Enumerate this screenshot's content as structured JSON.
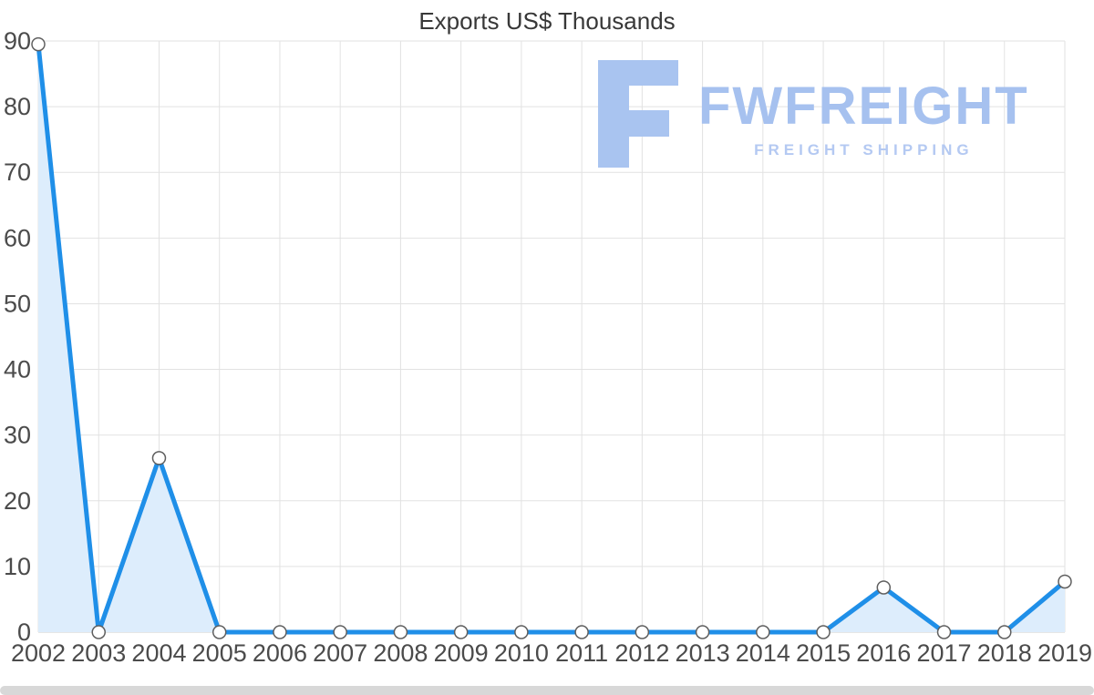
{
  "chart_data": {
    "type": "area",
    "title": "Exports US$ Thousands",
    "categories": [
      "2002",
      "2003",
      "2004",
      "2005",
      "2006",
      "2007",
      "2008",
      "2009",
      "2010",
      "2011",
      "2012",
      "2013",
      "2014",
      "2015",
      "2016",
      "2017",
      "2018",
      "2019"
    ],
    "values": [
      89.5,
      0,
      26.5,
      0,
      0,
      0,
      0,
      0,
      0,
      0,
      0,
      0,
      0,
      0,
      6.8,
      0,
      0,
      7.7
    ],
    "xlabel": "",
    "ylabel": "",
    "ylim": [
      0,
      90
    ],
    "ytick_step": 10,
    "grid": true,
    "legend": "none",
    "line_color": "#1f8fe8",
    "fill_color": "#ddedfc",
    "marker_fill": "#ffffff",
    "marker_stroke": "#5f5f5f",
    "grid_color": "#e2e2e2",
    "axis_line_color": "#cccccc"
  },
  "watermark": {
    "brand": "FWFREIGHT",
    "tagline": "FREIGHT SHIPPING",
    "brand_color": "#a6c1ef",
    "tagline_color": "#b4c9f2",
    "icon_color": "#a9c4f0",
    "icon": "fwfreight-logo-icon"
  }
}
